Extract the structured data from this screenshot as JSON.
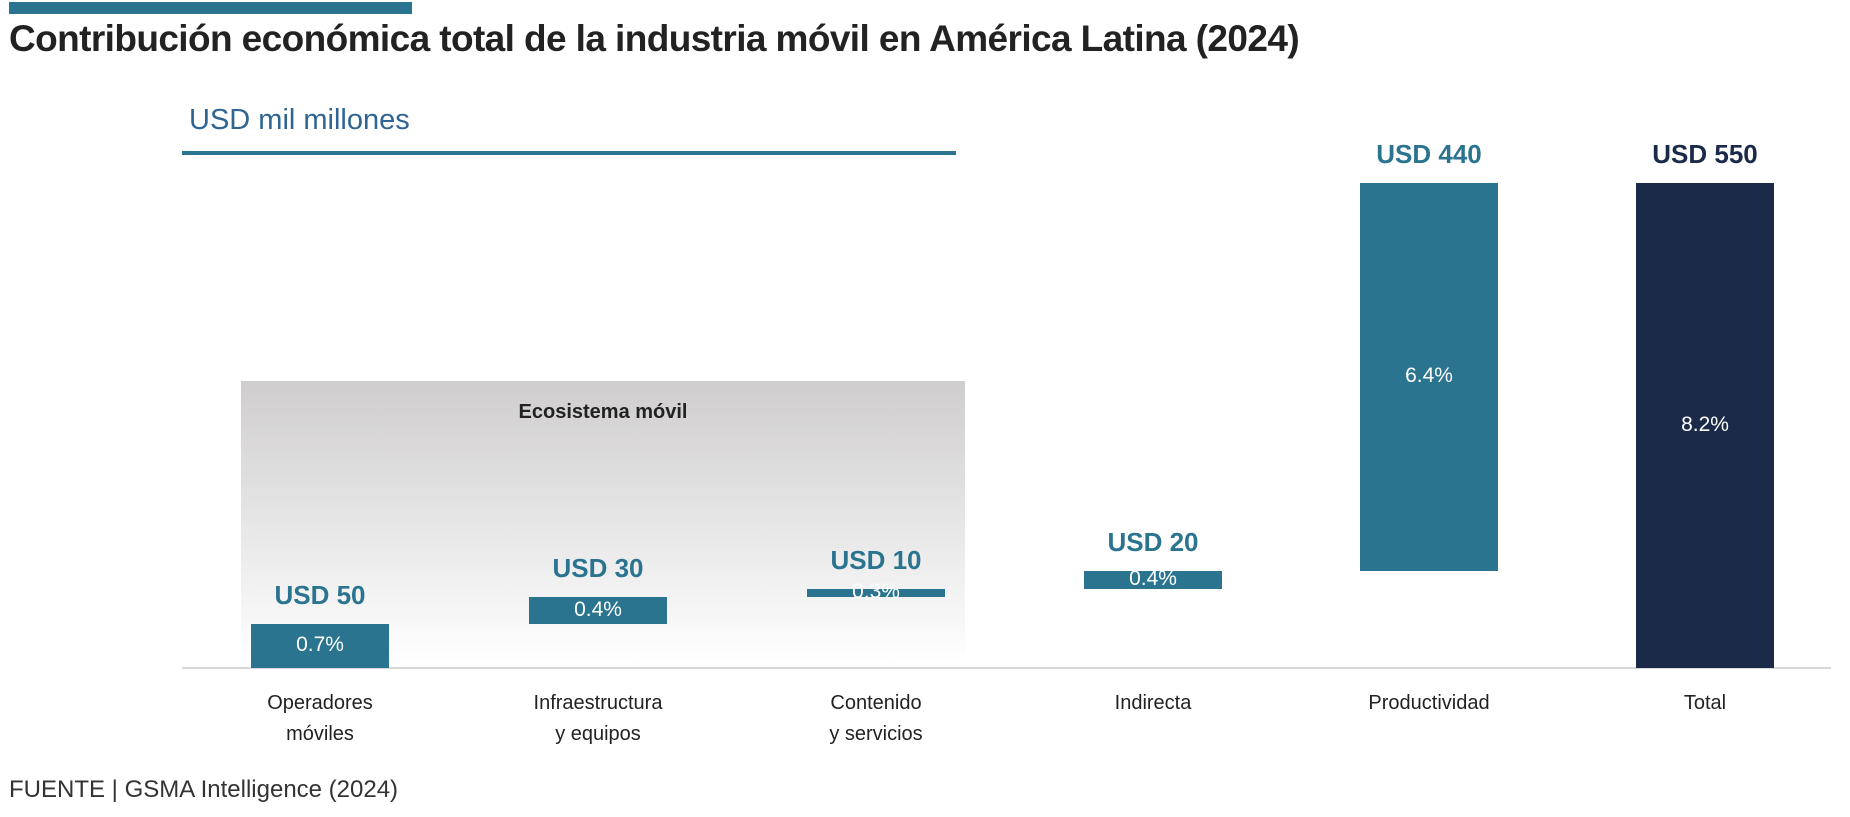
{
  "title": "Contribución económica total de la industria móvil en América Latina (2024)",
  "unit_label": "USD mil millones",
  "source": "FUENTE | GSMA Intelligence (2024)",
  "colors": {
    "accent": "#2a7490",
    "total": "#1c2a4a",
    "text": "#222222",
    "unit": "#2f6493"
  },
  "chart_data": {
    "type": "bar",
    "subtype": "waterfall",
    "title": "Contribución económica total de la industria móvil en América Latina (2024)",
    "ylabel": "USD mil millones",
    "ylim": [
      0,
      550
    ],
    "grid": false,
    "categories": [
      [
        "Operadores",
        "móviles"
      ],
      [
        "Infraestructura",
        "y equipos"
      ],
      [
        "Contenido",
        "y servicios"
      ],
      [
        "Indirecta"
      ],
      [
        "Productividad"
      ],
      [
        "Total"
      ]
    ],
    "values": [
      50,
      30,
      10,
      20,
      440,
      550
    ],
    "is_total": [
      false,
      false,
      false,
      false,
      false,
      true
    ],
    "value_labels": [
      "USD 50",
      "USD 30",
      "USD 10",
      "USD 20",
      "USD 440",
      "USD 550"
    ],
    "percent_labels": [
      "0.7%",
      "0.4%",
      "0.3%",
      "0.4%",
      "6.4%",
      "8.2%"
    ],
    "group_annotation": {
      "label": "Ecosistema móvil",
      "categories": [
        "Operadores móviles",
        "Infraestructura y equipos",
        "Contenido y servicios"
      ]
    }
  }
}
